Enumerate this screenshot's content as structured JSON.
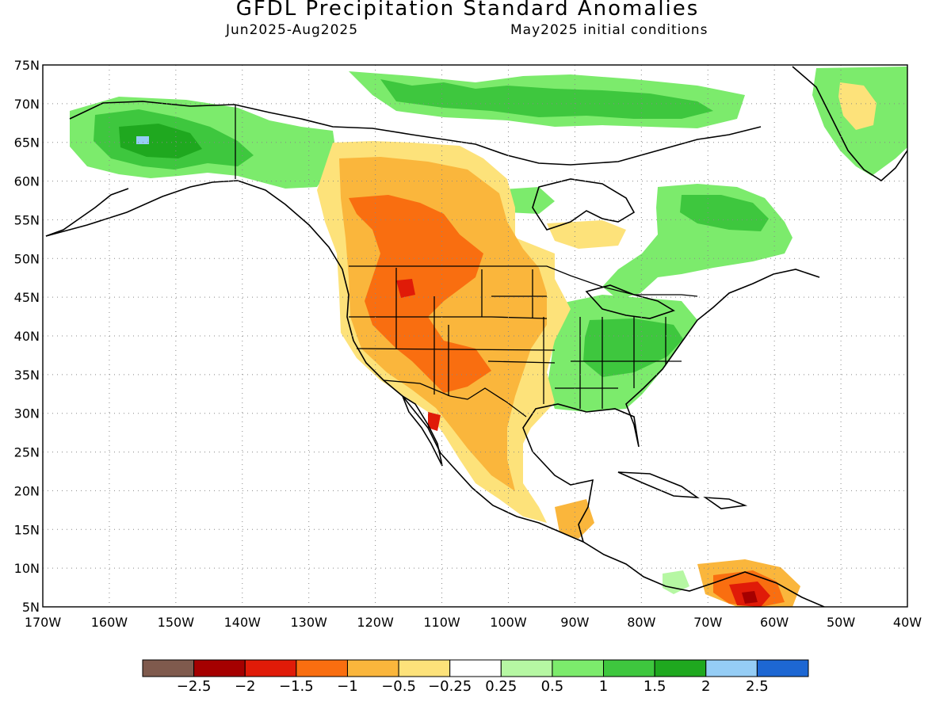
{
  "header": {
    "title": "GFDL Precipitation Standard Anomalies",
    "season": "Jun2025-Aug2025",
    "init": "May2025 initial conditions"
  },
  "axes": {
    "lat_labels": [
      "75N",
      "70N",
      "65N",
      "60N",
      "55N",
      "50N",
      "45N",
      "40N",
      "35N",
      "30N",
      "25N",
      "20N",
      "15N",
      "10N",
      "5N"
    ],
    "lon_labels": [
      "170W",
      "160W",
      "150W",
      "140W",
      "130W",
      "120W",
      "110W",
      "100W",
      "90W",
      "80W",
      "70W",
      "60W",
      "50W",
      "40W"
    ],
    "lat_range": [
      5,
      75
    ],
    "lon_range": [
      -170,
      -40
    ],
    "grid": "dotted"
  },
  "colorbar": {
    "colors": [
      "#7f5a4d",
      "#a50000",
      "#e01b08",
      "#f96e10",
      "#fab63c",
      "#fde27a",
      "#ffffff",
      "#b6f7a3",
      "#7ceb6c",
      "#3ec73e",
      "#1fa81f",
      "#95cdf5",
      "#1d67d3"
    ],
    "labels": [
      "-2.5",
      "-2",
      "-1.5",
      "-1",
      "-0.5",
      "-0.25",
      "0.25",
      "0.5",
      "1",
      "1.5",
      "2",
      "2.5"
    ]
  },
  "palette": {
    "land_outline": "#000000",
    "frame": "#000000"
  }
}
